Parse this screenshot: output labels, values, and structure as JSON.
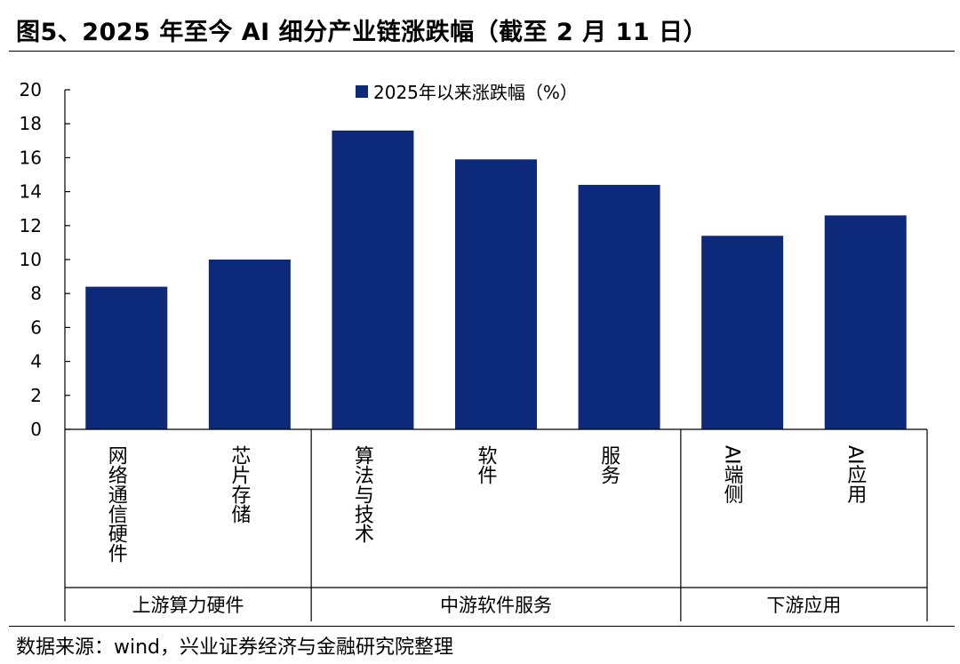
{
  "title": "图5、2025 年至今 AI 细分产业链涨跌幅（截至 2 月 11 日）",
  "source": "数据来源：wind，兴业证券经济与金融研究院整理",
  "colors": {
    "bar": "#0d2a7a",
    "axis": "#000000"
  },
  "chart_data": {
    "type": "bar",
    "title": "",
    "xlabel": "",
    "ylabel": "",
    "ylim": [
      0,
      20
    ],
    "yticks": [
      0,
      2,
      4,
      6,
      8,
      10,
      12,
      14,
      16,
      18,
      20
    ],
    "categories": [
      "网络通信硬件",
      "芯片存储",
      "算法与技术",
      "软件",
      "服务",
      "AI端侧",
      "AI应用"
    ],
    "series": [
      {
        "name": "2025年以来涨跌幅（%）",
        "values": [
          8.4,
          10.0,
          17.6,
          15.9,
          14.4,
          11.4,
          12.6
        ]
      }
    ],
    "groups": [
      {
        "label": "上游算力硬件",
        "members": 2
      },
      {
        "label": "中游软件服务",
        "members": 3
      },
      {
        "label": "下游应用",
        "members": 2
      }
    ],
    "legend_position": "top-center"
  }
}
